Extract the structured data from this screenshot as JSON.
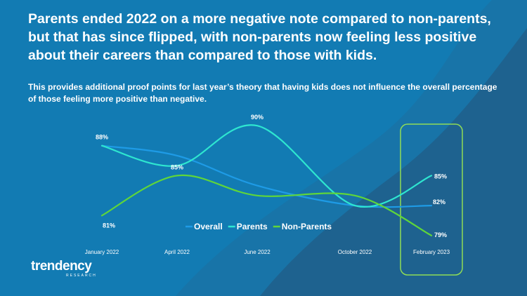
{
  "headline": "Parents ended 2022 on a more negative note compared to non-parents, but that has since flipped, with non-parents now feeling less positive about their careers than compared to those with kids.",
  "subtext": "This provides additional proof points for last year’s theory that having kids does not influence the overall percentage of those feeling more positive than negative.",
  "brand": {
    "word": "trendency",
    "sub": "RESEARCH"
  },
  "colors": {
    "overall": "#1e9be6",
    "parents": "#2ee6d0",
    "nonparents": "#5fd63a",
    "highlight": "#8fdc57"
  },
  "chart_data": {
    "type": "line",
    "categories": [
      "January 2022",
      "April 2022",
      "June 2022",
      "October 2022",
      "February 2023"
    ],
    "series": [
      {
        "name": "Overall",
        "values": [
          88,
          87,
          84,
          82,
          82
        ]
      },
      {
        "name": "Parents",
        "values": [
          88,
          86,
          90,
          82,
          85
        ]
      },
      {
        "name": "Non-Parents",
        "values": [
          81,
          85,
          83,
          83,
          79
        ]
      }
    ],
    "data_labels": [
      {
        "text": "88%",
        "series": "Parents",
        "index": 0
      },
      {
        "text": "81%",
        "series": "Non-Parents",
        "index": 0
      },
      {
        "text": "85%",
        "series": "Non-Parents",
        "index": 1
      },
      {
        "text": "90%",
        "series": "Parents",
        "index": 2
      },
      {
        "text": "85%",
        "series": "Parents",
        "index": 4
      },
      {
        "text": "82%",
        "series": "Overall",
        "index": 4
      },
      {
        "text": "79%",
        "series": "Non-Parents",
        "index": 4
      }
    ],
    "ylim": [
      78,
      91
    ],
    "grid": false,
    "legend": "bottom-center",
    "highlight_category": "February 2023"
  }
}
